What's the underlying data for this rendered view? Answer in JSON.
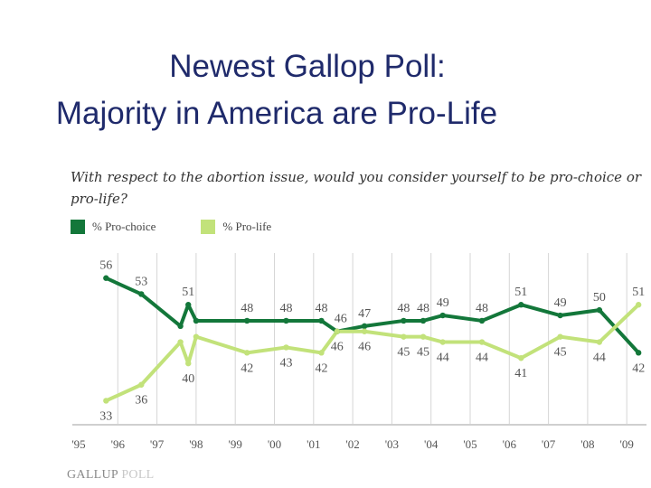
{
  "slide": {
    "title_line1": "Newest Gallop Poll:",
    "title_line2": "Majority in America are Pro-Life"
  },
  "logo": {
    "text_a": "GALLUP",
    "text_b": "POLL"
  },
  "chart_data": {
    "type": "line",
    "title": "With respect to the abortion issue, would you consider yourself to be pro-choice or pro-life?",
    "legend_position": "top-left",
    "grid": "vertical",
    "xlim": [
      1995,
      2009.6
    ],
    "ylim": [
      28.5,
      60.7
    ],
    "x_tick_labels": [
      "'95",
      "'96",
      "'97",
      "'98",
      "'99",
      "'00",
      "'01",
      "'02",
      "'03",
      "'04",
      "'05",
      "'06",
      "'07",
      "'08",
      "'09"
    ],
    "x_tick_values": [
      1995,
      1996,
      1997,
      1998,
      1999,
      2000,
      2001,
      2002,
      2003,
      2004,
      2005,
      2006,
      2007,
      2008,
      2009
    ],
    "series": [
      {
        "name": "% Pro-choice",
        "color": "#13773a",
        "x": [
          1995.7,
          1996.6,
          1997.6,
          1997.8,
          1998.0,
          1999.3,
          2000.3,
          2001.2,
          2001.6,
          2002.3,
          2003.3,
          2003.8,
          2004.3,
          2005.3,
          2006.3,
          2007.3,
          2008.3,
          2009.3
        ],
        "values": [
          56,
          53,
          47,
          51,
          48,
          48,
          48,
          48,
          46,
          47,
          48,
          48,
          49,
          48,
          51,
          49,
          50,
          42
        ],
        "labeled": [
          true,
          true,
          false,
          true,
          false,
          true,
          true,
          true,
          true,
          true,
          true,
          true,
          true,
          true,
          true,
          true,
          true,
          true
        ]
      },
      {
        "name": "% Pro-life",
        "color": "#c2e27a",
        "x": [
          1995.7,
          1996.6,
          1997.6,
          1997.8,
          1998.0,
          1999.3,
          2000.3,
          2001.2,
          2001.6,
          2002.3,
          2003.3,
          2003.8,
          2004.3,
          2005.3,
          2006.3,
          2007.3,
          2008.3,
          2009.3
        ],
        "values": [
          33,
          36,
          44,
          40,
          45,
          42,
          43,
          42,
          46,
          46,
          45,
          45,
          44,
          44,
          41,
          45,
          44,
          51
        ],
        "labeled": [
          true,
          true,
          false,
          true,
          false,
          true,
          true,
          true,
          true,
          true,
          true,
          true,
          true,
          true,
          true,
          true,
          true,
          true
        ]
      }
    ]
  }
}
